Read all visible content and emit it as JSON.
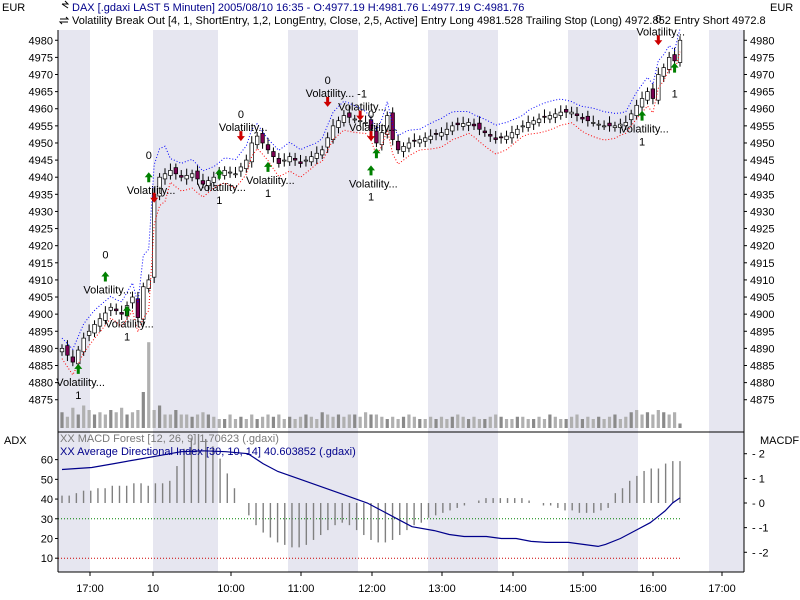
{
  "price_panel": {
    "left_unit": "EUR",
    "right_unit": "EUR",
    "line1": "DAX [.gdaxi LAST 5 Minuten] 2005/08/10 16:35 - O:4977.19 H:4981.76 L:4977.19 C:4981.76",
    "line2": "Volatility Break Out [4, 1, ShortEntry, 1,2, LongEntry, Close, 2,5, Active] Entry Long 4981.528 Trailing Stop (Long) 4972.852 Entry Short 4972.8"
  },
  "indicator_panel": {
    "left_label": "ADX",
    "right_label": "MACDF",
    "macd_legend": "XX MACD Forest [12, 26, 9] 1.70623 (.gdaxi)",
    "adx_legend": "XX Average Directional Index [30, 10, 14] 40.603852 (.gdaxi)"
  },
  "annotations": {
    "signal_label": "Volatility...",
    "values": [
      "0",
      "1",
      "-1"
    ]
  },
  "colors": {
    "band_upper": "#0000ff",
    "band_lower": "#ff0000",
    "long_arrow": "#008000",
    "short_arrow": "#cc0000",
    "adx_line": "#00008b",
    "bull_candle": "#ffffff",
    "bear_candle": "#7a0050",
    "shade": "#e6e6f0"
  },
  "chart_data": [
    {
      "type": "candlestick",
      "x_axis": {
        "ticks": [
          "17:00",
          "10",
          "10:00",
          "11:00",
          "12:00",
          "13:00",
          "14:00",
          "15:00",
          "16:00",
          "17:00"
        ]
      },
      "y_axis": {
        "ylim": [
          4872,
          4983
        ],
        "ticks": [
          4875,
          4880,
          4885,
          4890,
          4895,
          4900,
          4905,
          4910,
          4915,
          4920,
          4925,
          4930,
          4935,
          4940,
          4945,
          4950,
          4955,
          4960,
          4965,
          4970,
          4975,
          4980
        ]
      },
      "close_path": [
        [
          0,
          4890
        ],
        [
          2,
          4886
        ],
        [
          4,
          4893
        ],
        [
          6,
          4897
        ],
        [
          9,
          4902
        ],
        [
          11,
          4900
        ],
        [
          13,
          4905
        ],
        [
          14,
          4899
        ],
        [
          15,
          4908
        ],
        [
          16,
          4910
        ],
        [
          17,
          4935
        ],
        [
          18,
          4940
        ],
        [
          20,
          4942
        ],
        [
          22,
          4940
        ],
        [
          24,
          4941
        ],
        [
          26,
          4938
        ],
        [
          28,
          4940
        ],
        [
          30,
          4942
        ],
        [
          32,
          4941
        ],
        [
          34,
          4945
        ],
        [
          35,
          4950
        ],
        [
          36,
          4952
        ],
        [
          38,
          4948
        ],
        [
          40,
          4944
        ],
        [
          42,
          4946
        ],
        [
          44,
          4944
        ],
        [
          46,
          4946
        ],
        [
          48,
          4948
        ],
        [
          50,
          4955
        ],
        [
          52,
          4958
        ],
        [
          54,
          4957
        ],
        [
          56,
          4956
        ],
        [
          57,
          4954
        ],
        [
          58,
          4950
        ],
        [
          59,
          4953
        ],
        [
          60,
          4958
        ],
        [
          61,
          4951
        ],
        [
          62,
          4948
        ],
        [
          64,
          4950
        ],
        [
          66,
          4951
        ],
        [
          68,
          4952
        ],
        [
          70,
          4953
        ],
        [
          72,
          4955
        ],
        [
          75,
          4956
        ],
        [
          78,
          4953
        ],
        [
          80,
          4951
        ],
        [
          82,
          4952
        ],
        [
          84,
          4954
        ],
        [
          86,
          4956
        ],
        [
          88,
          4957
        ],
        [
          90,
          4958
        ],
        [
          92,
          4959
        ],
        [
          94,
          4959
        ],
        [
          96,
          4957
        ],
        [
          98,
          4956
        ],
        [
          100,
          4955
        ],
        [
          102,
          4955
        ],
        [
          104,
          4956
        ],
        [
          106,
          4961
        ],
        [
          108,
          4965
        ],
        [
          109,
          4963
        ],
        [
          110,
          4970
        ],
        [
          111,
          4972
        ],
        [
          112,
          4975
        ],
        [
          113,
          4974
        ],
        [
          114,
          4980
        ]
      ],
      "signals": [
        {
          "x": 3,
          "price": 4884,
          "dir": "up",
          "label": "Volatility...",
          "value": "1",
          "value_pos": "below"
        },
        {
          "x": 8,
          "price": 4911,
          "dir": "up",
          "label": "Volatility...",
          "value": "0",
          "value_pos": "above"
        },
        {
          "x": 12,
          "price": 4901,
          "dir": "up",
          "label": "Volatility...",
          "value": "1",
          "value_pos": "below"
        },
        {
          "x": 16,
          "price": 4940,
          "dir": "up",
          "label": "Volatility...",
          "value": "0",
          "value_pos": "above"
        },
        {
          "x": 17,
          "price": 4934,
          "dir": "down",
          "label": "",
          "value": "",
          "value_pos": "below"
        },
        {
          "x": 29,
          "price": 4941,
          "dir": "up",
          "label": "Volatility...",
          "value": "1",
          "value_pos": "below"
        },
        {
          "x": 33,
          "price": 4952,
          "dir": "down",
          "label": "Volatility...",
          "value": "0",
          "value_pos": "above"
        },
        {
          "x": 38,
          "price": 4943,
          "dir": "up",
          "label": "Volatility...",
          "value": "1",
          "value_pos": "below"
        },
        {
          "x": 49,
          "price": 4962,
          "dir": "down",
          "label": "Volatility...",
          "value": "0",
          "value_pos": "above"
        },
        {
          "x": 55,
          "price": 4958,
          "dir": "down",
          "label": "Volatility...",
          "value": "-1",
          "value_pos": "above"
        },
        {
          "x": 57,
          "price": 4952,
          "dir": "down",
          "label": "Volatility...",
          "value": "0",
          "value_pos": "above"
        },
        {
          "x": 58,
          "price": 4947,
          "dir": "up",
          "label": "",
          "value": "",
          "value_pos": "below"
        },
        {
          "x": 57,
          "price": 4942,
          "dir": "up",
          "label": "Volatility...",
          "value": "1",
          "value_pos": "below"
        },
        {
          "x": 107,
          "price": 4958,
          "dir": "up",
          "label": "Volatility...",
          "value": "1",
          "value_pos": "below"
        },
        {
          "x": 110,
          "price": 4980,
          "dir": "down",
          "label": "Volatility...",
          "value": "0",
          "value_pos": "above"
        },
        {
          "x": 113,
          "price": 4972,
          "dir": "up",
          "label": "",
          "value": "1",
          "value_pos": "below"
        }
      ],
      "volume": [
        0.35,
        0.25,
        0.45,
        0.3,
        0.5,
        0.4,
        0.3,
        0.35,
        0.3,
        0.4,
        0.35,
        0.45,
        0.3,
        0.35,
        0.4,
        0.8,
        0.55,
        0.4,
        0.5,
        0.3,
        0.3,
        0.4,
        0.3,
        0.3,
        0.25,
        0.3,
        0.35,
        0.3,
        0.25,
        0.2,
        0.2,
        0.3,
        0.2,
        0.25,
        0.2,
        0.3,
        0.2,
        0.25,
        0.3,
        0.25,
        0.3,
        0.2,
        0.25,
        0.2,
        0.25,
        0.3,
        0.25,
        0.2,
        0.35,
        0.3,
        0.25,
        0.3,
        0.25,
        0.3,
        0.3,
        0.25,
        0.35,
        0.3,
        0.3,
        0.25,
        0.2,
        0.25,
        0.2,
        0.25,
        0.3,
        0.25,
        0.2,
        0.2,
        0.25,
        0.2,
        0.25,
        0.2,
        0.25,
        0.3,
        0.25,
        0.2,
        0.25,
        0.2,
        0.2,
        0.25,
        0.3,
        0.25,
        0.2,
        0.2,
        0.25,
        0.25,
        0.2,
        0.2,
        0.25,
        0.2,
        0.3,
        0.25,
        0.2,
        0.2,
        0.25,
        0.3,
        0.2,
        0.25,
        0.2,
        0.25,
        0.2,
        0.25,
        0.3,
        0.2,
        0.25,
        0.35,
        0.4,
        0.3,
        0.35,
        0.3,
        0.4,
        0.35,
        0.3,
        0.35,
        0.1
      ],
      "volume_spike": {
        "x": 16,
        "fraction": 1.0
      }
    },
    {
      "type": "line+bar",
      "x_axis": {
        "ticks": [
          "17:00",
          "10",
          "10:00",
          "11:00",
          "12:00",
          "13:00",
          "14:00",
          "15:00",
          "16:00",
          "17:00"
        ]
      },
      "left_axis": {
        "name": "ADX",
        "ylim": [
          3,
          73
        ],
        "ticks": [
          10,
          20,
          30,
          40,
          50,
          60
        ]
      },
      "right_axis": {
        "name": "MACDF",
        "ylim": [
          -2.8,
          2.8
        ],
        "ticks": [
          2,
          1,
          0,
          -1,
          -2
        ]
      },
      "adx": [
        [
          0,
          55
        ],
        [
          8,
          56
        ],
        [
          14,
          58
        ],
        [
          20,
          60
        ],
        [
          26,
          62
        ],
        [
          32,
          64
        ],
        [
          38,
          64.5
        ],
        [
          44,
          64
        ],
        [
          50,
          63
        ],
        [
          54,
          58
        ],
        [
          58,
          54
        ],
        [
          64,
          50
        ],
        [
          70,
          46
        ],
        [
          76,
          42
        ],
        [
          82,
          38
        ],
        [
          86,
          34
        ],
        [
          90,
          30
        ],
        [
          94,
          26
        ],
        [
          100,
          24
        ],
        [
          104,
          22
        ],
        [
          108,
          21
        ],
        [
          114,
          21
        ],
        [
          118,
          20
        ],
        [
          122,
          20
        ],
        [
          126,
          18.5
        ],
        [
          130,
          18
        ],
        [
          136,
          18
        ],
        [
          140,
          17
        ],
        [
          144,
          16
        ],
        [
          146,
          17
        ],
        [
          150,
          20
        ],
        [
          154,
          24
        ],
        [
          158,
          28
        ],
        [
          160,
          31
        ],
        [
          162,
          34
        ],
        [
          164,
          38
        ],
        [
          166,
          40.6
        ]
      ],
      "macd_forest": [
        0.3,
        0.3,
        0.4,
        0.5,
        0.5,
        0.6,
        0.6,
        0.7,
        0.7,
        0.7,
        0.8,
        0.8,
        0.7,
        0.8,
        0.8,
        0.9,
        1.5,
        2.2,
        2.6,
        2.8,
        2.6,
        2.3,
        1.8,
        1.2,
        0.6,
        0.0,
        -0.5,
        -0.9,
        -1.2,
        -1.4,
        -1.6,
        -1.7,
        -1.8,
        -1.8,
        -1.7,
        -1.5,
        -1.3,
        -1.1,
        -0.9,
        -0.8,
        -0.9,
        -1.1,
        -1.3,
        -1.5,
        -1.6,
        -1.6,
        -1.5,
        -1.3,
        -1.1,
        -0.9,
        -0.8,
        -0.6,
        -0.5,
        -0.4,
        -0.3,
        -0.2,
        -0.1,
        0.0,
        0.1,
        0.2,
        0.2,
        0.2,
        0.2,
        0.2,
        0.2,
        0.1,
        0.0,
        -0.1,
        -0.1,
        -0.2,
        -0.3,
        -0.3,
        -0.4,
        -0.4,
        -0.4,
        -0.3,
        -0.2,
        0.4,
        0.6,
        0.9,
        1.1,
        1.3,
        1.4,
        1.4,
        1.6,
        1.7,
        1.7
      ],
      "adx_ref_lines": [
        30,
        10
      ]
    }
  ]
}
